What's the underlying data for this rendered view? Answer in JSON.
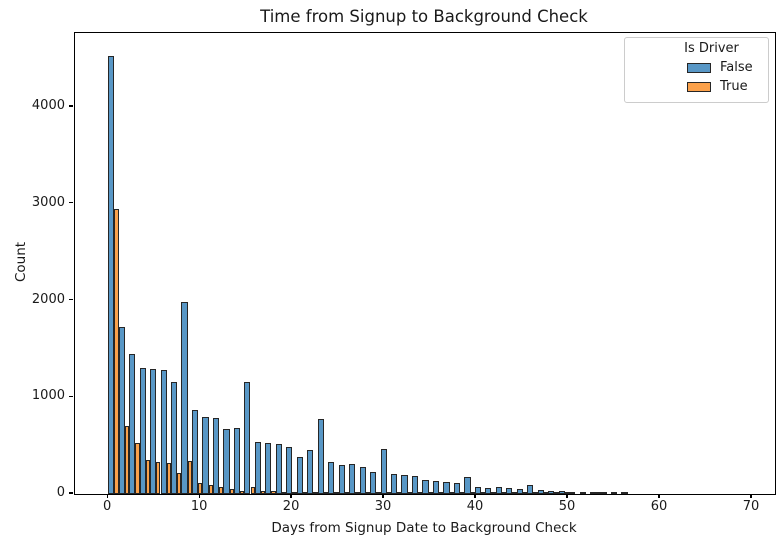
{
  "figure": {
    "background": "#ffffff"
  },
  "chart_data": {
    "type": "bar",
    "subtype": "histogram-dodged",
    "title": "Time from Signup to Background Check",
    "xlabel": "Days from Signup Date to Background Check",
    "ylabel": "Count",
    "legend": {
      "title": "Is Driver",
      "position": "upper right",
      "entries": [
        "False",
        "True"
      ]
    },
    "axes": {
      "xlim": [
        -3.6,
        72.5
      ],
      "ylim": [
        0,
        4766
      ],
      "xticks": [
        0,
        10,
        20,
        30,
        40,
        50,
        60,
        70
      ],
      "yticks": [
        0,
        1000,
        2000,
        3000,
        4000
      ],
      "grid": false
    },
    "bins": {
      "start_day": 0,
      "width_days": 1.139,
      "count": 50
    },
    "series": [
      {
        "name": "False",
        "color": "#5897C6",
        "edge_color": "#262626",
        "values": [
          4530,
          1730,
          1450,
          1300,
          1290,
          1280,
          1155,
          1985,
          873,
          797,
          787,
          677,
          687,
          1160,
          540,
          525,
          515,
          490,
          380,
          450,
          775,
          330,
          295,
          310,
          275,
          230,
          470,
          205,
          198,
          184,
          143,
          133,
          126,
          115,
          174,
          74,
          60,
          74,
          60,
          53,
          95,
          46,
          26,
          36,
          19,
          19,
          22,
          12,
          9,
          9
        ]
      },
      {
        "name": "True",
        "color": "#FBA14B",
        "edge_color": "#262626",
        "values": [
          2950,
          700,
          523,
          355,
          335,
          318,
          219,
          345,
          112,
          91,
          70,
          54,
          36,
          77,
          26,
          26,
          15,
          25,
          8,
          6,
          25,
          8,
          6,
          5,
          5,
          4,
          10,
          3,
          3,
          2,
          2,
          2,
          2,
          4,
          1,
          1,
          1,
          1,
          1,
          2,
          1,
          1,
          1,
          1,
          0,
          0,
          1,
          0,
          0,
          0
        ]
      }
    ]
  }
}
